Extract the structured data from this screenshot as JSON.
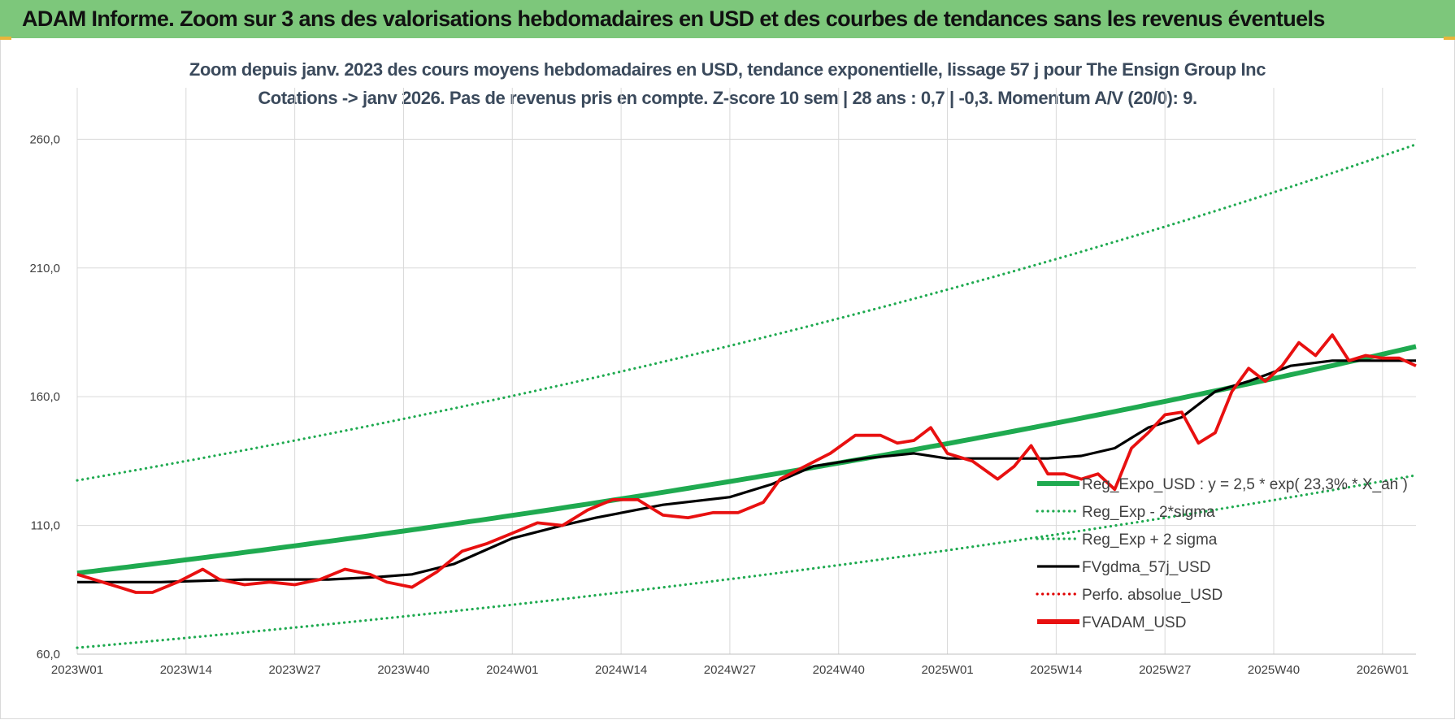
{
  "banner_title": "ADAM Informe. Zoom sur 3 ans des valorisations hebdomadaires en USD et des courbes de tendances sans les revenus éventuels",
  "colors": {
    "banner": "#7dc77b",
    "reg_expo": "#1faa50",
    "reg_band": "#1faa50",
    "fvgdma": "#000000",
    "perfo": "#e00000",
    "fvadam": "#e81010"
  },
  "chart_data": {
    "type": "line",
    "title": "Zoom depuis janv. 2023 des cours moyens hebdomadaires en USD, tendance exponentielle, lissage 57 j pour The Ensign Group Inc",
    "subtitle": "Cotations -> janv 2026. Pas de revenus pris en compte. Z-score 10 sem | 28 ans : 0,7 | -0,3. Momentum A/V (20/0): 9.",
    "xlabel": "",
    "ylabel": "",
    "ylim": [
      60,
      280
    ],
    "y_ticks": [
      "60,0",
      "110,0",
      "160,0",
      "210,0",
      "260,0"
    ],
    "y_tick_values": [
      60,
      110,
      160,
      210,
      260
    ],
    "x_ticks": [
      "2023W01",
      "2023W14",
      "2023W27",
      "2023W40",
      "2024W01",
      "2024W14",
      "2024W27",
      "2024W40",
      "2025W01",
      "2025W14",
      "2025W27",
      "2025W40",
      "2026W01"
    ],
    "x_tick_index": [
      0,
      13,
      26,
      39,
      52,
      65,
      78,
      91,
      104,
      117,
      130,
      143,
      156
    ],
    "n_weeks": 161,
    "grid": true,
    "legend_position": "right-middle",
    "series": [
      {
        "name": "Reg_Expo_USD : y = 2,5 * exp( 23,3% *  X_an )",
        "style": "thick-solid",
        "color": "#1faa50",
        "x": [
          0,
          160
        ],
        "y": [
          91.5,
          179.5
        ],
        "curve": "exponential"
      },
      {
        "name": "Reg_Exp - 2*sigma",
        "style": "dotted",
        "color": "#1faa50",
        "x": [
          0,
          160
        ],
        "y": [
          62.5,
          129.5
        ],
        "curve": "exponential"
      },
      {
        "name": "Reg_Exp + 2 sigma",
        "style": "dotted",
        "color": "#1faa50",
        "x": [
          0,
          160
        ],
        "y": [
          127.5,
          258
        ],
        "curve": "exponential"
      },
      {
        "name": "FVgdma_57j_USD",
        "style": "solid",
        "color": "#000000",
        "x": [
          0,
          10,
          20,
          30,
          36,
          40,
          45,
          52,
          58,
          62,
          70,
          78,
          83,
          88,
          94,
          100,
          104,
          108,
          112,
          116,
          120,
          124,
          128,
          132,
          136,
          140,
          145,
          150,
          156,
          160
        ],
        "y": [
          88,
          88,
          89,
          89,
          90,
          91,
          95,
          105,
          110,
          113,
          118,
          121,
          126,
          133,
          136,
          138,
          136,
          136,
          136,
          136,
          137,
          140,
          148,
          152,
          162,
          166,
          172,
          174,
          174,
          174
        ]
      },
      {
        "name": "Perfo. absolue_USD",
        "style": "dotted",
        "color": "#e00000",
        "x": [],
        "y": []
      },
      {
        "name": "FVADAM_USD",
        "style": "solid",
        "color": "#e81010",
        "x": [
          0,
          2,
          5,
          7,
          9,
          12,
          15,
          17,
          20,
          23,
          26,
          29,
          32,
          35,
          37,
          40,
          43,
          46,
          49,
          52,
          55,
          58,
          61,
          64,
          67,
          70,
          73,
          76,
          79,
          82,
          84,
          87,
          90,
          93,
          96,
          98,
          100,
          102,
          104,
          107,
          110,
          112,
          114,
          116,
          118,
          120,
          122,
          124,
          126,
          128,
          130,
          132,
          134,
          136,
          138,
          140,
          142,
          144,
          146,
          148,
          150,
          152,
          154,
          156,
          158,
          160
        ],
        "y": [
          91,
          89,
          86,
          84,
          84,
          88,
          93,
          89,
          87,
          88,
          87,
          89,
          93,
          91,
          88,
          86,
          92,
          100,
          103,
          107,
          111,
          110,
          116,
          120,
          120,
          114,
          113,
          115,
          115,
          119,
          128,
          133,
          138,
          145,
          145,
          142,
          143,
          148,
          138,
          135,
          128,
          133,
          141,
          130,
          130,
          128,
          130,
          124,
          140,
          146,
          153,
          154,
          142,
          146,
          162,
          171,
          166,
          172,
          181,
          176,
          184,
          174,
          176,
          175,
          175,
          172
        ]
      }
    ]
  },
  "legend": [
    {
      "label": "Reg_Expo_USD : y = 2,5 * exp( 23,3% *  X_an )",
      "style": "thick-solid",
      "color": "#1faa50"
    },
    {
      "label": "Reg_Exp - 2*sigma",
      "style": "dotted",
      "color": "#1faa50"
    },
    {
      "label": "Reg_Exp + 2 sigma",
      "style": "dotted",
      "color": "#1faa50"
    },
    {
      "label": "FVgdma_57j_USD",
      "style": "solid",
      "color": "#000000"
    },
    {
      "label": "Perfo. absolue_USD",
      "style": "dotted",
      "color": "#e00000"
    },
    {
      "label": "FVADAM_USD",
      "style": "thick-solid",
      "color": "#e81010"
    }
  ]
}
